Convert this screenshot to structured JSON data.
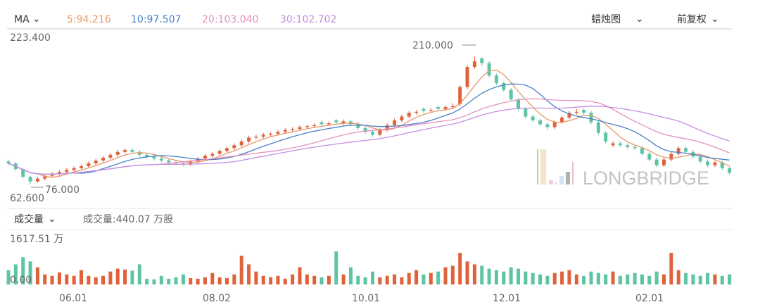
{
  "header": {
    "indicator_label": "MA",
    "ma5": "5:94.216",
    "ma10": "10:97.507",
    "ma20": "20:103.040",
    "ma30": "30:102.702",
    "chart_type_label": "蜡烛图",
    "adjust_label": "前复权"
  },
  "volume_header": {
    "indicator_label": "成交量",
    "value_text": "成交量:440.07 万股"
  },
  "colors": {
    "up": "#e0623a",
    "down": "#5ec4a4",
    "ma5": "#e8996b",
    "ma10": "#4a7ec9",
    "ma20": "#e58fc0",
    "ma30": "#c48ee0"
  },
  "watermark": "LONGBRIDGE",
  "chart_data": [
    {
      "type": "candlestick",
      "ylim": [
        62.6,
        223.4
      ],
      "y_max_label": "223.400",
      "y_min_label": "62.600",
      "annotations": {
        "high": "210.000",
        "low": "76.000"
      },
      "moving_averages": [
        5,
        10,
        20,
        30
      ],
      "x_tick_labels": [
        "06.01",
        "08.02",
        "10.01",
        "12.01",
        "02.01"
      ],
      "ohlc": [
        [
          100,
          102,
          96,
          98
        ],
        [
          98,
          99,
          90,
          92
        ],
        [
          92,
          93,
          82,
          84
        ],
        [
          84,
          85,
          76,
          79
        ],
        [
          79,
          84,
          78,
          82
        ],
        [
          82,
          87,
          80,
          85
        ],
        [
          85,
          89,
          83,
          87
        ],
        [
          87,
          91,
          85,
          89
        ],
        [
          89,
          93,
          87,
          91
        ],
        [
          91,
          95,
          89,
          93
        ],
        [
          93,
          97,
          91,
          95
        ],
        [
          95,
          100,
          93,
          98
        ],
        [
          98,
          103,
          96,
          101
        ],
        [
          101,
          106,
          99,
          104
        ],
        [
          104,
          109,
          102,
          107
        ],
        [
          107,
          112,
          105,
          110
        ],
        [
          110,
          114,
          108,
          112
        ],
        [
          112,
          114,
          108,
          110
        ],
        [
          110,
          112,
          105,
          107
        ],
        [
          107,
          109,
          103,
          105
        ],
        [
          105,
          107,
          101,
          103
        ],
        [
          103,
          105,
          99,
          101
        ],
        [
          101,
          103,
          97,
          99
        ],
        [
          99,
          101,
          96,
          98
        ],
        [
          98,
          100,
          95,
          97
        ],
        [
          97,
          102,
          95,
          100
        ],
        [
          100,
          105,
          98,
          103
        ],
        [
          103,
          108,
          101,
          106
        ],
        [
          106,
          110,
          104,
          108
        ],
        [
          108,
          113,
          106,
          111
        ],
        [
          111,
          116,
          109,
          114
        ],
        [
          114,
          119,
          112,
          117
        ],
        [
          117,
          123,
          115,
          121
        ],
        [
          121,
          127,
          119,
          125
        ],
        [
          125,
          128,
          123,
          126
        ],
        [
          126,
          130,
          124,
          128
        ],
        [
          128,
          131,
          126,
          129
        ],
        [
          129,
          133,
          127,
          131
        ],
        [
          131,
          135,
          129,
          133
        ],
        [
          133,
          136,
          131,
          134
        ],
        [
          134,
          138,
          132,
          136
        ],
        [
          136,
          139,
          134,
          137
        ],
        [
          137,
          140,
          135,
          138
        ],
        [
          141,
          143,
          137,
          139
        ],
        [
          139,
          142,
          137,
          140
        ],
        [
          143,
          145,
          139,
          141
        ],
        [
          140,
          144,
          138,
          142
        ],
        [
          142,
          144,
          137,
          139
        ],
        [
          139,
          141,
          133,
          135
        ],
        [
          135,
          137,
          129,
          131
        ],
        [
          131,
          133,
          126,
          128
        ],
        [
          128,
          135,
          126,
          133
        ],
        [
          133,
          140,
          131,
          138
        ],
        [
          138,
          145,
          136,
          143
        ],
        [
          143,
          149,
          141,
          147
        ],
        [
          147,
          153,
          145,
          151
        ],
        [
          151,
          154,
          149,
          152
        ],
        [
          155,
          157,
          151,
          153
        ],
        [
          153,
          156,
          151,
          154
        ],
        [
          157,
          159,
          153,
          155
        ],
        [
          155,
          159,
          153,
          157
        ],
        [
          157,
          161,
          155,
          158
        ],
        [
          160,
          180,
          158,
          178
        ],
        [
          178,
          201,
          176,
          199
        ],
        [
          199,
          210,
          197,
          205
        ],
        [
          208,
          209,
          200,
          203
        ],
        [
          203,
          205,
          188,
          190
        ],
        [
          190,
          192,
          180,
          182
        ],
        [
          182,
          184,
          173,
          175
        ],
        [
          175,
          177,
          163,
          165
        ],
        [
          165,
          167,
          153,
          155
        ],
        [
          155,
          157,
          145,
          147
        ],
        [
          147,
          149,
          141,
          143
        ],
        [
          143,
          145,
          137,
          139
        ],
        [
          139,
          141,
          133,
          136
        ],
        [
          136,
          143,
          134,
          141
        ],
        [
          141,
          148,
          139,
          146
        ],
        [
          146,
          153,
          144,
          151
        ],
        [
          151,
          155,
          149,
          152
        ],
        [
          154,
          156,
          149,
          151
        ],
        [
          151,
          153,
          139,
          141
        ],
        [
          141,
          143,
          128,
          130
        ],
        [
          130,
          132,
          119,
          121
        ],
        [
          117,
          121,
          115,
          119
        ],
        [
          119,
          121,
          115,
          117
        ],
        [
          117,
          119,
          113,
          115
        ],
        [
          115,
          117,
          112,
          114
        ],
        [
          114,
          116,
          106,
          108
        ],
        [
          108,
          110,
          100,
          102
        ],
        [
          102,
          104,
          94,
          96
        ],
        [
          96,
          104,
          94,
          102
        ],
        [
          102,
          110,
          100,
          108
        ],
        [
          108,
          116,
          106,
          114
        ],
        [
          114,
          116,
          108,
          110
        ],
        [
          110,
          112,
          103,
          105
        ],
        [
          105,
          107,
          98,
          100
        ],
        [
          100,
          102,
          94,
          96
        ],
        [
          96,
          101,
          94,
          99
        ],
        [
          99,
          101,
          91,
          93
        ],
        [
          93,
          95,
          86,
          88
        ]
      ]
    },
    {
      "type": "bar",
      "ylim": [
        0,
        1617.51
      ],
      "y_max_label": "1617.51 万",
      "y_min_label": "0.00",
      "values": [
        500,
        700,
        950,
        800,
        600,
        350,
        300,
        420,
        350,
        300,
        500,
        300,
        250,
        300,
        450,
        550,
        520,
        480,
        700,
        200,
        180,
        300,
        200,
        250,
        350,
        220,
        200,
        250,
        400,
        250,
        220,
        350,
        1000,
        700,
        450,
        300,
        250,
        300,
        200,
        350,
        600,
        350,
        300,
        250,
        300,
        1150,
        350,
        600,
        300,
        250,
        450,
        250,
        300,
        350,
        250,
        400,
        500,
        350,
        400,
        450,
        600,
        650,
        1100,
        800,
        700,
        650,
        550,
        500,
        450,
        600,
        550,
        450,
        400,
        350,
        300,
        400,
        450,
        500,
        350,
        300,
        450,
        400,
        350,
        450,
        300,
        350,
        400,
        350,
        300,
        450,
        350,
        1100,
        500,
        400,
        350,
        300,
        400,
        350,
        300,
        350
      ]
    }
  ]
}
